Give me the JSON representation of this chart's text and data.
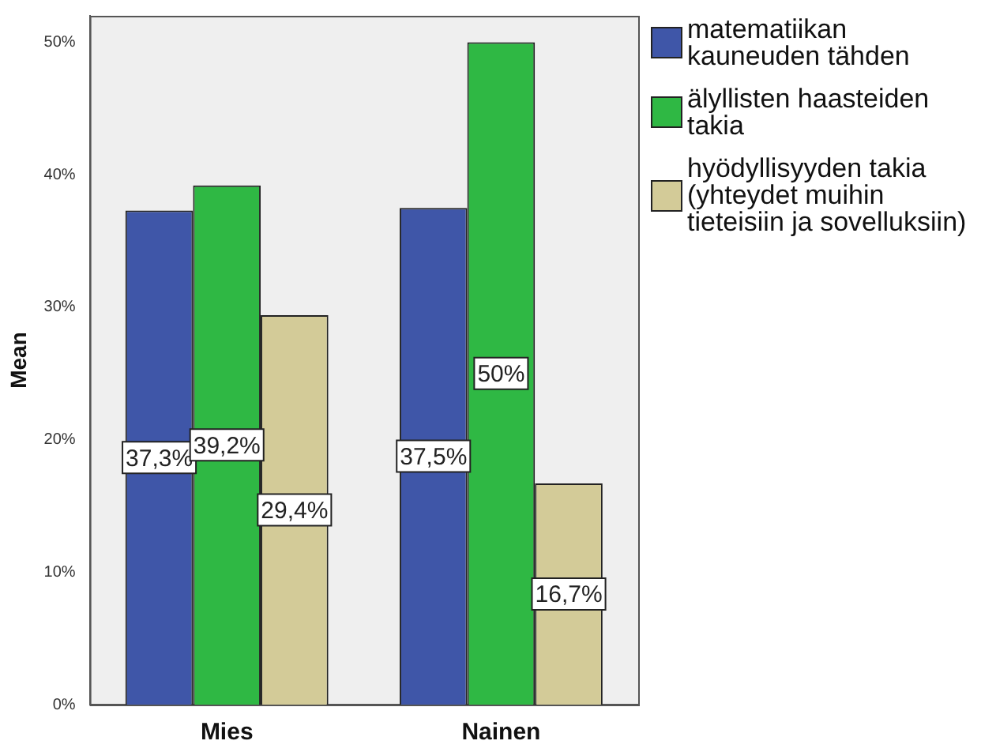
{
  "chart_data": {
    "type": "bar",
    "ylabel": "Mean",
    "categories": [
      "Mies",
      "Nainen"
    ],
    "series": [
      {
        "name": "matematiikan kauneuden tähden",
        "color": "#3f56a8",
        "values": [
          37.3,
          37.5
        ],
        "value_labels": [
          "37,3%",
          "37,5%"
        ]
      },
      {
        "name": "älyllisten haasteiden takia",
        "color": "#2fb844",
        "values": [
          39.2,
          50
        ],
        "value_labels": [
          "39,2%",
          "50%"
        ]
      },
      {
        "name": "hyödyllisyyden takia (yhteydet muihin tieteisiin ja sovelluksiin)",
        "color": "#d3cb98",
        "values": [
          29.4,
          16.7
        ],
        "value_labels": [
          "29,4%",
          "16,7%"
        ]
      }
    ],
    "ylim": [
      0,
      52
    ],
    "yticks": [
      {
        "value": 0,
        "label": "0%"
      },
      {
        "value": 10,
        "label": "10%"
      },
      {
        "value": 20,
        "label": "20%"
      },
      {
        "value": 30,
        "label": "30%"
      },
      {
        "value": 40,
        "label": "40%"
      },
      {
        "value": 50,
        "label": "50%"
      }
    ],
    "grid": false,
    "legend": "right"
  }
}
